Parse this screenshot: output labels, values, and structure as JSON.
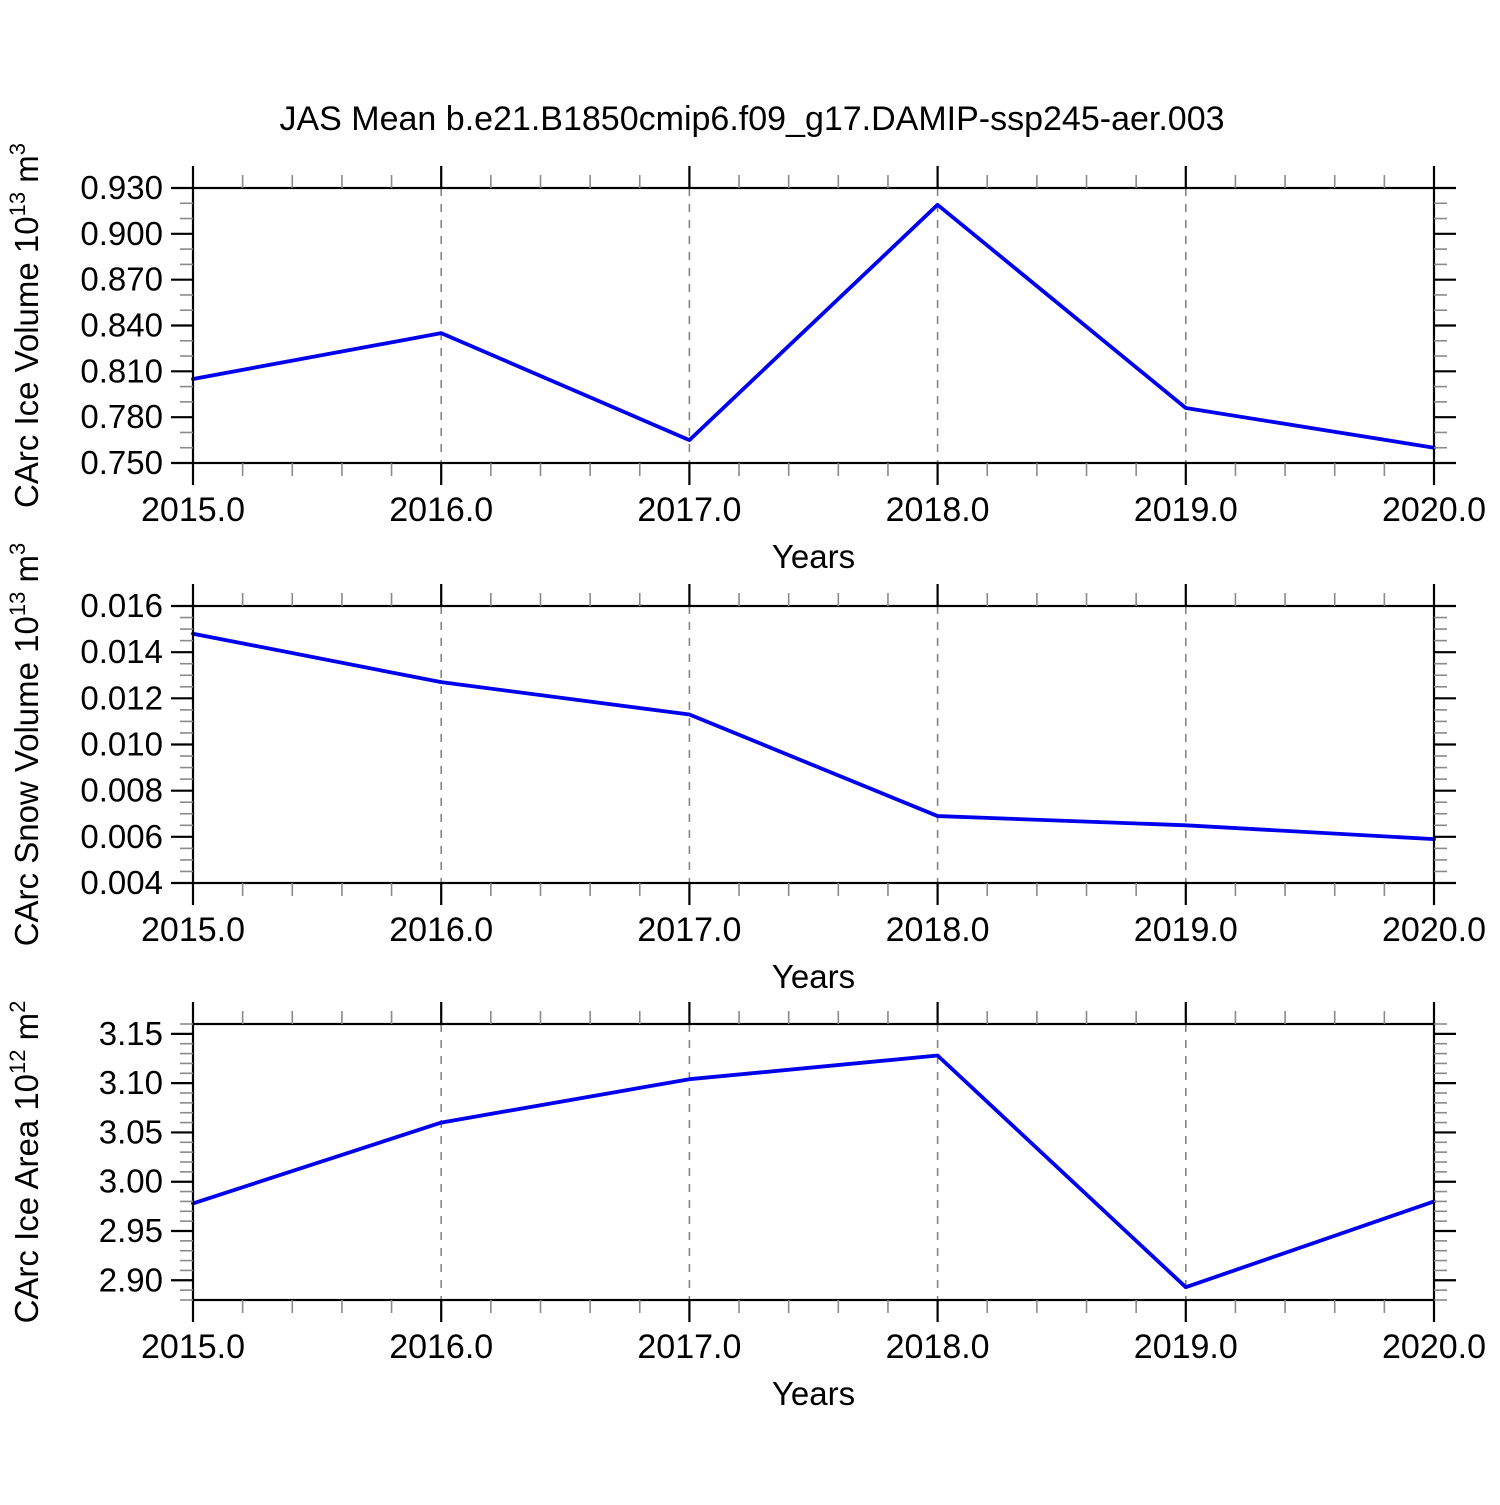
{
  "title": "JAS Mean b.e21.B1850cmip6.f09_g17.DAMIP-ssp245-aer.003",
  "line_color": "#0000ee",
  "grid_color": "#858585",
  "frame_color": "#000000",
  "minor_tick_color": "#8a8a8a",
  "chart_data": [
    {
      "type": "line",
      "panel": "ice-volume",
      "x": [
        2015.0,
        2016.0,
        2017.0,
        2018.0,
        2019.0,
        2020.0
      ],
      "series": [
        {
          "name": "CArc Ice Volume",
          "values": [
            0.805,
            0.835,
            0.765,
            0.919,
            0.786,
            0.76
          ]
        }
      ],
      "xlabel": "Years",
      "xlim": [
        2015.0,
        2020.0
      ],
      "xticks": [
        2015.0,
        2016.0,
        2017.0,
        2018.0,
        2019.0,
        2020.0
      ],
      "xticklabels": [
        "2015.0",
        "2016.0",
        "2017.0",
        "2018.0",
        "2019.0",
        "2020.0"
      ],
      "x_minor_step": 0.2,
      "grid_x": [
        2016.0,
        2017.0,
        2018.0,
        2019.0
      ],
      "ylabel": "CArc Ice Volume 10^13 m^3",
      "ylabel_parts": [
        {
          "text": "CArc Ice Volume 10",
          "sup": false
        },
        {
          "text": "13",
          "sup": true
        },
        {
          "text": " m",
          "sup": false
        },
        {
          "text": "3",
          "sup": true
        }
      ],
      "ylim": [
        0.75,
        0.93
      ],
      "yticks": [
        0.75,
        0.78,
        0.81,
        0.84,
        0.87,
        0.9,
        0.93
      ],
      "yticklabels": [
        "0.750",
        "0.780",
        "0.810",
        "0.840",
        "0.870",
        "0.900",
        "0.930"
      ],
      "y_minor_step": 0.01,
      "grid_on": "vertical-dashed-only"
    },
    {
      "type": "line",
      "panel": "snow-volume",
      "x": [
        2015.0,
        2016.0,
        2017.0,
        2018.0,
        2019.0,
        2020.0
      ],
      "series": [
        {
          "name": "CArc Snow Volume",
          "values": [
            0.0148,
            0.0127,
            0.0113,
            0.0069,
            0.0065,
            0.0059
          ]
        }
      ],
      "xlabel": "Years",
      "xlim": [
        2015.0,
        2020.0
      ],
      "xticks": [
        2015.0,
        2016.0,
        2017.0,
        2018.0,
        2019.0,
        2020.0
      ],
      "xticklabels": [
        "2015.0",
        "2016.0",
        "2017.0",
        "2018.0",
        "2019.0",
        "2020.0"
      ],
      "x_minor_step": 0.2,
      "grid_x": [
        2016.0,
        2017.0,
        2018.0,
        2019.0
      ],
      "ylabel": "CArc Snow Volume 10^13 m^3",
      "ylabel_parts": [
        {
          "text": "CArc Snow Volume 10",
          "sup": false
        },
        {
          "text": "13",
          "sup": true
        },
        {
          "text": " m",
          "sup": false
        },
        {
          "text": "3",
          "sup": true
        }
      ],
      "ylim": [
        0.004,
        0.016
      ],
      "yticks": [
        0.004,
        0.006,
        0.008,
        0.01,
        0.012,
        0.014,
        0.016
      ],
      "yticklabels": [
        "0.004",
        "0.006",
        "0.008",
        "0.010",
        "0.012",
        "0.014",
        "0.016"
      ],
      "y_minor_step": 0.0005,
      "grid_on": "vertical-dashed-only"
    },
    {
      "type": "line",
      "panel": "ice-area",
      "x": [
        2015.0,
        2016.0,
        2017.0,
        2018.0,
        2019.0,
        2020.0
      ],
      "series": [
        {
          "name": "CArc Ice Area",
          "values": [
            2.978,
            3.06,
            3.104,
            3.128,
            2.893,
            2.98
          ]
        }
      ],
      "xlabel": "Years",
      "xlim": [
        2015.0,
        2020.0
      ],
      "xticks": [
        2015.0,
        2016.0,
        2017.0,
        2018.0,
        2019.0,
        2020.0
      ],
      "xticklabels": [
        "2015.0",
        "2016.0",
        "2017.0",
        "2018.0",
        "2019.0",
        "2020.0"
      ],
      "x_minor_step": 0.2,
      "grid_x": [
        2016.0,
        2017.0,
        2018.0,
        2019.0
      ],
      "ylabel": "CArc Ice Area 10^12 m^2",
      "ylabel_parts": [
        {
          "text": "CArc Ice Area 10",
          "sup": false
        },
        {
          "text": "12",
          "sup": true
        },
        {
          "text": " m",
          "sup": false
        },
        {
          "text": "2",
          "sup": true
        }
      ],
      "ylim": [
        2.88,
        3.16
      ],
      "yticks": [
        2.9,
        2.95,
        3.0,
        3.05,
        3.1,
        3.15
      ],
      "yticklabels": [
        "2.90",
        "2.95",
        "3.00",
        "3.05",
        "3.10",
        "3.15"
      ],
      "y_minor_step": 0.01,
      "grid_on": "vertical-dashed-only"
    }
  ]
}
